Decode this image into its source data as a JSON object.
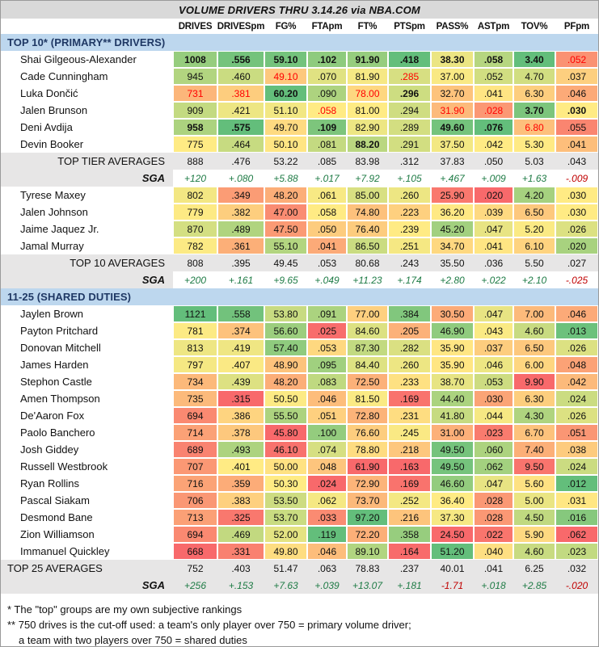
{
  "title": "VOLUME DRIVERS THRU 3.14.26 via NBA.COM",
  "columns": [
    "DRIVES",
    "DRIVESpm",
    "FG%",
    "FTApm",
    "FT%",
    "PTSpm",
    "PASS%",
    "ASTpm",
    "TOV%",
    "PFpm"
  ],
  "colors": {
    "title_bar_bg": "#D9D9D9",
    "section_bg": "#BDD7EE",
    "section_text": "#1F3864",
    "avg_row_bg": "#E7E6E6",
    "sga_pos": "#1E7B45",
    "sga_neg": "#C00000",
    "cell_red_text": "#FF0000",
    "heatmap_red": "#F8696B",
    "heatmap_yellow": "#FFEB84",
    "heatmap_green": "#63BE7B"
  },
  "heatmap_scales": [
    {
      "min": 668,
      "mid": 775,
      "max": 1121,
      "invert": false
    },
    {
      "min": 0.315,
      "mid": 0.401,
      "max": 0.575,
      "invert": false
    },
    {
      "min": 45.8,
      "mid": 50.3,
      "max": 60.2,
      "invert": false
    },
    {
      "min": 0.024,
      "mid": 0.058,
      "max": 0.119,
      "invert": false
    },
    {
      "min": 61.9,
      "mid": 81.0,
      "max": 97.2,
      "invert": false
    },
    {
      "min": 0.163,
      "mid": 0.239,
      "max": 0.418,
      "invert": false
    },
    {
      "min": 24.5,
      "mid": 36.4,
      "max": 51.2,
      "invert": false
    },
    {
      "min": 0.02,
      "mid": 0.042,
      "max": 0.076,
      "invert": false
    },
    {
      "min": 3.4,
      "mid": 5.25,
      "max": 9.9,
      "invert": true
    },
    {
      "min": 0.012,
      "mid": 0.03,
      "max": 0.062,
      "invert": true
    }
  ],
  "rows": [
    {
      "t": "sec",
      "label": "TOP 10* (PRIMARY** DRIVERS)"
    },
    {
      "t": "p",
      "name": "Shai Gilgeous-Alexander",
      "v": [
        "1008",
        ".556",
        "59.10",
        ".102",
        "91.90",
        ".418",
        "38.30",
        ".058",
        "3.40",
        ".052"
      ],
      "bold": [
        0,
        1,
        2,
        3,
        4,
        5,
        6,
        7,
        8
      ],
      "red": [
        9
      ]
    },
    {
      "t": "p",
      "name": "Cade Cunningham",
      "v": [
        "945",
        ".460",
        "49.10",
        ".070",
        "81.90",
        ".285",
        "37.00",
        ".052",
        "4.70",
        ".037"
      ],
      "bold": [],
      "red": [
        2,
        5
      ]
    },
    {
      "t": "p",
      "name": "Luka Dončić",
      "v": [
        "731",
        ".381",
        "60.20",
        ".090",
        "78.00",
        ".296",
        "32.70",
        ".041",
        "6.30",
        ".046"
      ],
      "bold": [
        2,
        5
      ],
      "red": [
        0,
        1,
        4
      ]
    },
    {
      "t": "p",
      "name": "Jalen Brunson",
      "v": [
        "909",
        ".421",
        "51.10",
        ".058",
        "81.00",
        ".294",
        "31.90",
        ".028",
        "3.70",
        ".030"
      ],
      "bold": [
        8,
        9
      ],
      "red": [
        3,
        6,
        7
      ]
    },
    {
      "t": "p",
      "name": "Deni Avdija",
      "v": [
        "958",
        ".575",
        "49.70",
        ".109",
        "82.90",
        ".289",
        "49.60",
        ".076",
        "6.80",
        ".055"
      ],
      "bold": [
        0,
        1,
        3,
        6,
        7
      ],
      "red": [
        8
      ]
    },
    {
      "t": "p",
      "name": "Devin Booker",
      "v": [
        "775",
        ".464",
        "50.10",
        ".081",
        "88.20",
        ".291",
        "37.50",
        ".042",
        "5.30",
        ".041"
      ],
      "bold": [
        4
      ],
      "red": []
    },
    {
      "t": "avg",
      "label": "TOP TIER AVERAGES",
      "align": "right",
      "v": [
        "888",
        ".476",
        "53.22",
        ".085",
        "83.98",
        ".312",
        "37.83",
        ".050",
        "5.03",
        ".043"
      ]
    },
    {
      "t": "sga",
      "label": "SGA",
      "bg": "white",
      "v": [
        "+120",
        "+.080",
        "+5.88",
        "+.017",
        "+7.92",
        "+.105",
        "+.467",
        "+.009",
        "+1.63",
        "-.009"
      ],
      "neg": [
        9
      ]
    },
    {
      "t": "p",
      "name": "Tyrese Maxey",
      "v": [
        "802",
        ".349",
        "48.20",
        ".061",
        "85.00",
        ".260",
        "25.90",
        ".020",
        "4.20",
        ".030"
      ],
      "bold": [],
      "red": []
    },
    {
      "t": "p",
      "name": "Jalen Johnson",
      "v": [
        "779",
        ".382",
        "47.00",
        ".058",
        "74.80",
        ".223",
        "36.20",
        ".039",
        "6.50",
        ".030"
      ],
      "bold": [],
      "red": []
    },
    {
      "t": "p",
      "name": "Jaime Jaquez Jr.",
      "v": [
        "870",
        ".489",
        "47.50",
        ".050",
        "76.40",
        ".239",
        "45.20",
        ".047",
        "5.20",
        ".026"
      ],
      "bold": [],
      "red": []
    },
    {
      "t": "p",
      "name": "Jamal Murray",
      "v": [
        "782",
        ".361",
        "55.10",
        ".041",
        "86.50",
        ".251",
        "34.70",
        ".041",
        "6.10",
        ".020"
      ],
      "bold": [],
      "red": []
    },
    {
      "t": "avg",
      "label": "TOP 10 AVERAGES",
      "align": "right",
      "v": [
        "808",
        ".395",
        "49.45",
        ".053",
        "80.68",
        ".243",
        "35.50",
        ".036",
        "5.50",
        ".027"
      ]
    },
    {
      "t": "sga",
      "label": "SGA",
      "bg": "white",
      "v": [
        "+200",
        "+.161",
        "+9.65",
        "+.049",
        "+11.23",
        "+.174",
        "+2.80",
        "+.022",
        "+2.10",
        "-.025"
      ],
      "neg": [
        9
      ]
    },
    {
      "t": "sec",
      "label": "11-25 (SHARED DUTIES)"
    },
    {
      "t": "p",
      "name": "Jaylen Brown",
      "v": [
        "1121",
        ".558",
        "53.80",
        ".091",
        "77.00",
        ".384",
        "30.50",
        ".047",
        "7.00",
        ".046"
      ],
      "bold": [],
      "red": []
    },
    {
      "t": "p",
      "name": "Payton Pritchard",
      "v": [
        "781",
        ".374",
        "56.60",
        ".025",
        "84.60",
        ".205",
        "46.90",
        ".043",
        "4.60",
        ".013"
      ],
      "bold": [],
      "red": []
    },
    {
      "t": "p",
      "name": "Donovan Mitchell",
      "v": [
        "813",
        ".419",
        "57.40",
        ".053",
        "87.30",
        ".282",
        "35.90",
        ".037",
        "6.50",
        ".026"
      ],
      "bold": [],
      "red": []
    },
    {
      "t": "p",
      "name": "James Harden",
      "v": [
        "797",
        ".407",
        "48.90",
        ".095",
        "84.40",
        ".260",
        "35.90",
        ".046",
        "6.00",
        ".048"
      ],
      "bold": [],
      "red": []
    },
    {
      "t": "p",
      "name": "Stephon Castle",
      "v": [
        "734",
        ".439",
        "48.20",
        ".083",
        "72.50",
        ".233",
        "38.70",
        ".053",
        "9.90",
        ".042"
      ],
      "bold": [],
      "red": []
    },
    {
      "t": "p",
      "name": "Amen Thompson",
      "v": [
        "735",
        ".315",
        "50.50",
        ".046",
        "81.50",
        ".169",
        "44.40",
        ".030",
        "6.30",
        ".024"
      ],
      "bold": [],
      "red": []
    },
    {
      "t": "p",
      "name": "De'Aaron Fox",
      "v": [
        "694",
        ".386",
        "55.50",
        ".051",
        "72.80",
        ".231",
        "41.80",
        ".044",
        "4.30",
        ".026"
      ],
      "bold": [],
      "red": []
    },
    {
      "t": "p",
      "name": "Paolo Banchero",
      "v": [
        "714",
        ".378",
        "45.80",
        ".100",
        "76.60",
        ".245",
        "31.00",
        ".023",
        "6.70",
        ".051"
      ],
      "bold": [],
      "red": []
    },
    {
      "t": "p",
      "name": "Josh Giddey",
      "v": [
        "689",
        ".493",
        "46.10",
        ".074",
        "78.80",
        ".218",
        "49.50",
        ".060",
        "7.40",
        ".038"
      ],
      "bold": [],
      "red": []
    },
    {
      "t": "p",
      "name": "Russell Westbrook",
      "v": [
        "707",
        ".401",
        "50.00",
        ".048",
        "61.90",
        ".163",
        "49.50",
        ".062",
        "9.50",
        ".024"
      ],
      "bold": [],
      "red": []
    },
    {
      "t": "p",
      "name": "Ryan Rollins",
      "v": [
        "716",
        ".359",
        "50.30",
        ".024",
        "72.90",
        ".169",
        "46.60",
        ".047",
        "5.60",
        ".012"
      ],
      "bold": [],
      "red": []
    },
    {
      "t": "p",
      "name": "Pascal Siakam",
      "v": [
        "706",
        ".383",
        "53.50",
        ".062",
        "73.70",
        ".252",
        "36.40",
        ".028",
        "5.00",
        ".031"
      ],
      "bold": [],
      "red": []
    },
    {
      "t": "p",
      "name": "Desmond Bane",
      "v": [
        "713",
        ".325",
        "53.70",
        ".033",
        "97.20",
        ".216",
        "37.30",
        ".028",
        "4.50",
        ".016"
      ],
      "bold": [],
      "red": []
    },
    {
      "t": "p",
      "name": "Zion Williamson",
      "v": [
        "694",
        ".469",
        "52.00",
        ".119",
        "72.20",
        ".358",
        "24.50",
        ".022",
        "5.90",
        ".062"
      ],
      "bold": [],
      "red": []
    },
    {
      "t": "p",
      "name": "Immanuel Quickley",
      "v": [
        "668",
        ".331",
        "49.80",
        ".046",
        "89.10",
        ".164",
        "51.20",
        ".040",
        "4.60",
        ".023"
      ],
      "bold": [],
      "red": []
    },
    {
      "t": "avg",
      "label": "TOP 25 AVERAGES",
      "align": "left",
      "v": [
        "752",
        ".403",
        "51.47",
        ".063",
        "78.83",
        ".237",
        "40.01",
        ".041",
        "6.25",
        ".032"
      ]
    },
    {
      "t": "sga",
      "label": "SGA",
      "bg": "gray",
      "v": [
        "+256",
        "+.153",
        "+7.63",
        "+.039",
        "+13.07",
        "+.181",
        "-1.71",
        "+.018",
        "+2.85",
        "-.020"
      ],
      "neg": [
        6,
        9
      ]
    }
  ],
  "footnotes": [
    "* The \"top\" groups are my own subjective rankings",
    "** 750 drives is the cut-off used: a team's only player over 750 = primary volume driver;",
    "a team with two players over 750 = shared duties"
  ]
}
